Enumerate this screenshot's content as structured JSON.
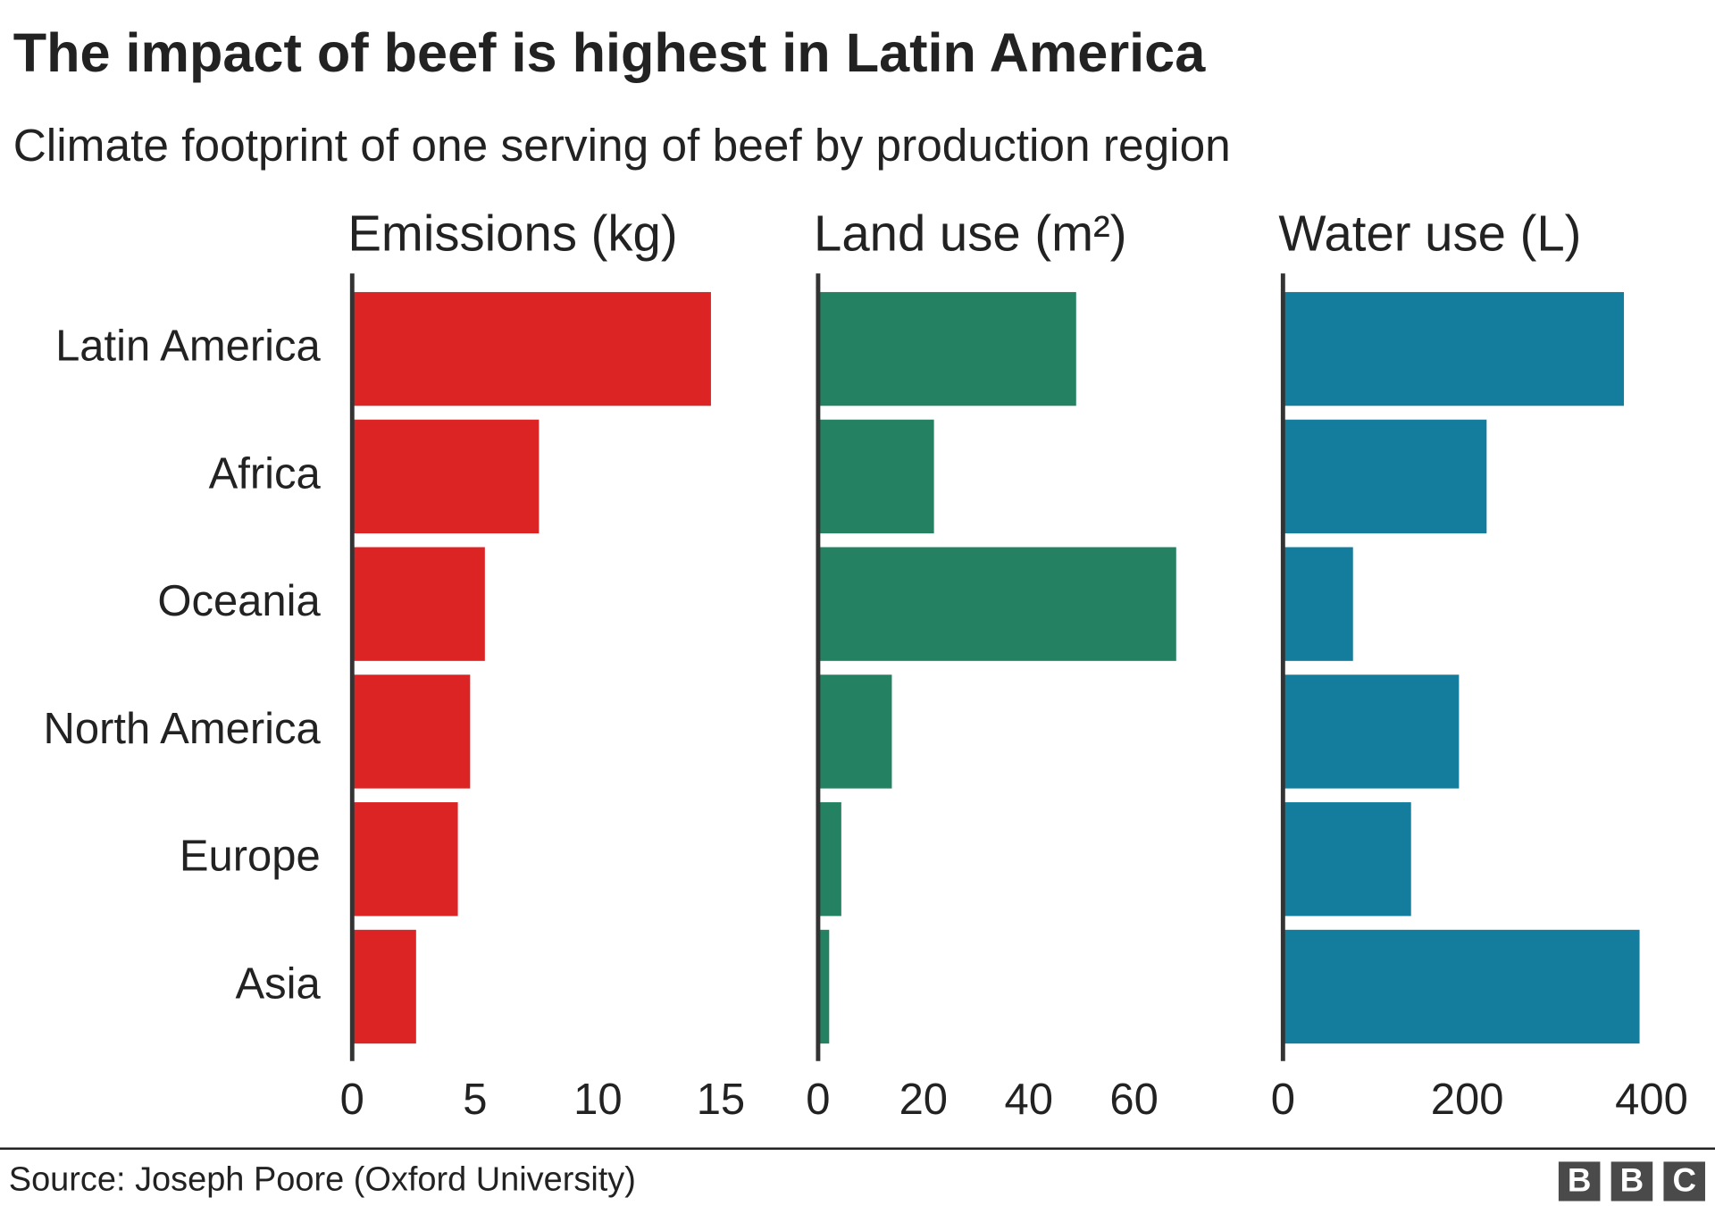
{
  "title": "The impact of beef is highest in Latin America",
  "subtitle": "Climate footprint of one serving of beef by production region",
  "source": "Source: Joseph Poore (Oxford University)",
  "logo": [
    "B",
    "B",
    "C"
  ],
  "chart_data": [
    {
      "type": "bar",
      "orientation": "horizontal",
      "title": "Emissions (kg)",
      "categories": [
        "Latin America",
        "Africa",
        "Oceania",
        "North America",
        "Europe",
        "Asia"
      ],
      "values": [
        14.6,
        7.6,
        5.4,
        4.8,
        4.3,
        2.6
      ],
      "color": "#dc2424",
      "xlim": [
        0,
        15
      ],
      "xticks": [
        0,
        5,
        10,
        15
      ]
    },
    {
      "type": "bar",
      "orientation": "horizontal",
      "title": "Land use (m²)",
      "values": [
        49,
        22,
        68,
        14,
        4.4,
        2.1
      ],
      "color": "#248162",
      "xlim": [
        0,
        70
      ],
      "xticks": [
        0,
        20,
        40,
        60
      ]
    },
    {
      "type": "bar",
      "orientation": "horizontal",
      "title": "Water use (L)",
      "values": [
        370,
        221,
        76,
        191,
        139,
        387
      ],
      "color": "#147c9c",
      "xlim": [
        0,
        400
      ],
      "xticks": [
        0,
        200,
        400
      ]
    }
  ]
}
